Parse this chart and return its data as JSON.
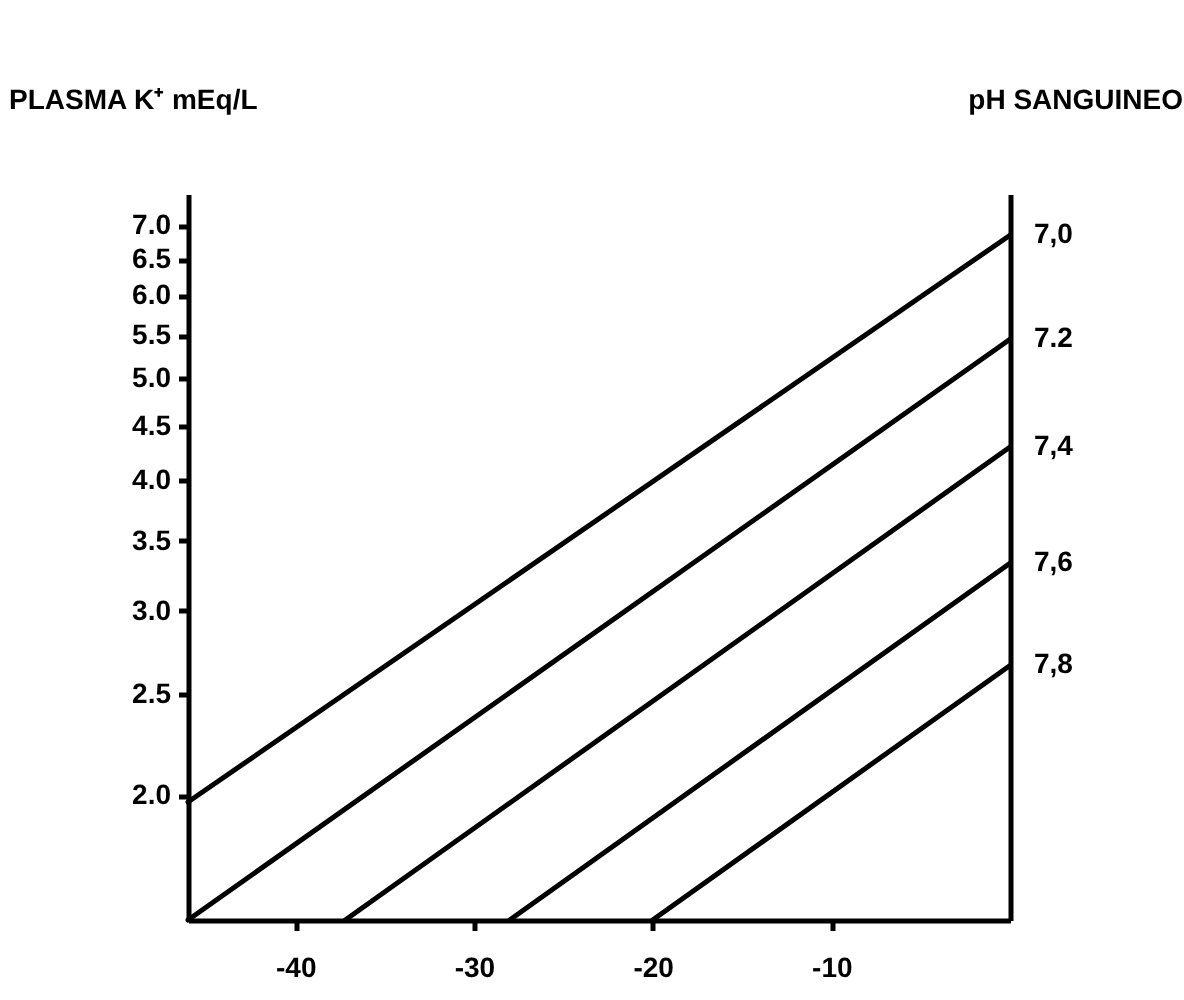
{
  "chart_data": {
    "type": "line",
    "ylabel": "PLASMA K⁺ mEq/L",
    "y2label": "pH SANGUINEO",
    "xlim": [
      -46,
      0
    ],
    "xticks": [
      -40,
      -30,
      -20,
      -10
    ],
    "ylim": [
      1.52,
      7.5
    ],
    "log": "y",
    "yticks": [
      {
        "value": 2,
        "label": "2.0"
      },
      2.5,
      {
        "value": 3,
        "label": "3.0"
      },
      3.5,
      {
        "value": 4,
        "label": "4.0"
      },
      4.5,
      {
        "value": 5,
        "label": "5.0"
      },
      5.5,
      {
        "value": 6,
        "label": "6.0"
      },
      6.5,
      {
        "value": 7,
        "label": "7.0"
      }
    ],
    "grid": false,
    "legend": false,
    "marker": "none",
    "line_style": "solid",
    "series": [
      {
        "name": "7,0",
        "color": "#000000",
        "x": [
          -46,
          0
        ],
        "values": [
          1.97,
          6.85
        ]
      },
      {
        "name": "7.2",
        "color": "#000000",
        "x": [
          -46,
          0
        ],
        "values": [
          1.52,
          5.45
        ]
      },
      {
        "name": "7,4",
        "color": "#000000",
        "x": [
          -37.2,
          0
        ],
        "values": [
          1.52,
          4.3
        ]
      },
      {
        "name": "7,6",
        "color": "#000000",
        "x": [
          -28,
          0
        ],
        "values": [
          1.52,
          3.33
        ]
      },
      {
        "name": "7,8",
        "color": "#000000",
        "x": [
          -20,
          0
        ],
        "values": [
          1.52,
          2.66
        ]
      }
    ]
  }
}
